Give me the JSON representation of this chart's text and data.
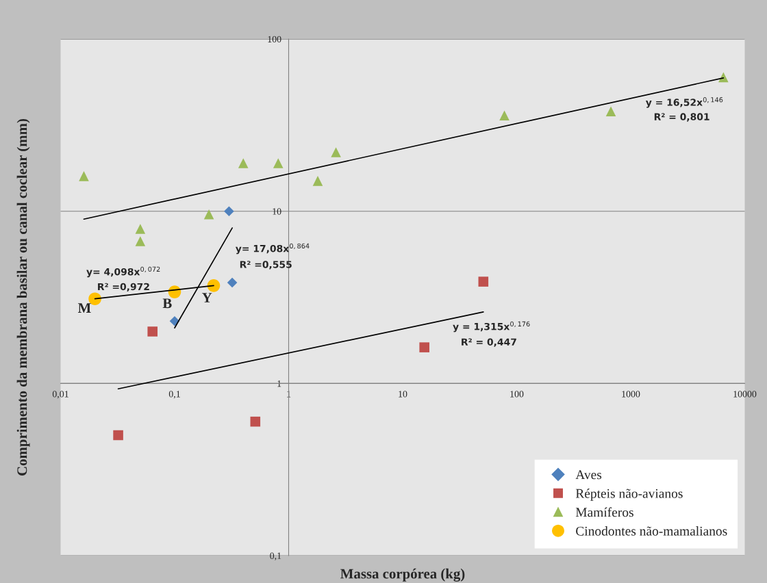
{
  "chart_data": {
    "type": "scatter",
    "xlabel": "Massa corpórea (kg)",
    "ylabel": "Comprimento da membrana basilar ou canal coclear (mm)",
    "log": "xy",
    "xlim": [
      0.01,
      10000
    ],
    "ylim": [
      0.1,
      100
    ],
    "xticks": [
      {
        "value": 0.01,
        "label": "0,01"
      },
      {
        "value": 0.1,
        "label": "0,1"
      },
      1,
      10,
      100,
      1000,
      10000
    ],
    "yticks": [
      {
        "value": 0.1,
        "label": "0,1"
      },
      1,
      10,
      100
    ],
    "grid": "y",
    "legend": "bottom right",
    "series": [
      {
        "name": "Aves",
        "marker": "diamond",
        "color": "#4f81bd",
        "x": [
          0.1,
          0.3,
          0.32
        ],
        "values": [
          2.3,
          10,
          3.85
        ]
      },
      {
        "name": "Répteis não-avianos",
        "marker": "square",
        "color": "#c0504d",
        "x": [
          0.064,
          0.032,
          0.51,
          15.5,
          51
        ],
        "values": [
          2.0,
          0.5,
          0.6,
          1.62,
          3.9
        ]
      },
      {
        "name": "Mamíferos",
        "marker": "triangle",
        "color": "#9bbb59",
        "x": [
          0.016,
          0.05,
          0.05,
          0.2,
          0.4,
          0.81,
          1.8,
          2.6,
          78,
          670,
          6500
        ],
        "values": [
          16,
          7.9,
          6.7,
          9.6,
          19,
          19,
          15,
          22,
          36,
          38,
          60
        ]
      },
      {
        "name": "Cinodontes não-mamalianos",
        "marker": "circle",
        "color": "#ffc000",
        "x": [
          0.02,
          0.1,
          0.22
        ],
        "values": [
          3.1,
          3.4,
          3.7
        ]
      },
      {
        "type": "line",
        "color": "#000000",
        "x": [
          0.016,
          6500
        ],
        "values": [
          9.0,
          59.5
        ]
      },
      {
        "type": "line",
        "color": "#000000",
        "x": [
          0.032,
          51
        ],
        "values": [
          0.93,
          2.6
        ]
      },
      {
        "type": "line",
        "color": "#000000",
        "x": [
          0.1,
          0.32
        ],
        "values": [
          2.1,
          8.0
        ]
      },
      {
        "type": "line",
        "color": "#000000",
        "x": [
          0.02,
          0.22
        ],
        "values": [
          3.1,
          3.7
        ]
      }
    ],
    "annotations": [
      "y = 16,52x$^{0,146}$",
      "R² = 0,801",
      "y = 1,315x$^{0,176}$",
      "R² = 0,447",
      "y= 17,08x$^{0,864}$",
      "R² =0,555",
      "y= 4,098x$^{0,072}$",
      "R² =0,972",
      "M",
      "B",
      "Y"
    ]
  }
}
